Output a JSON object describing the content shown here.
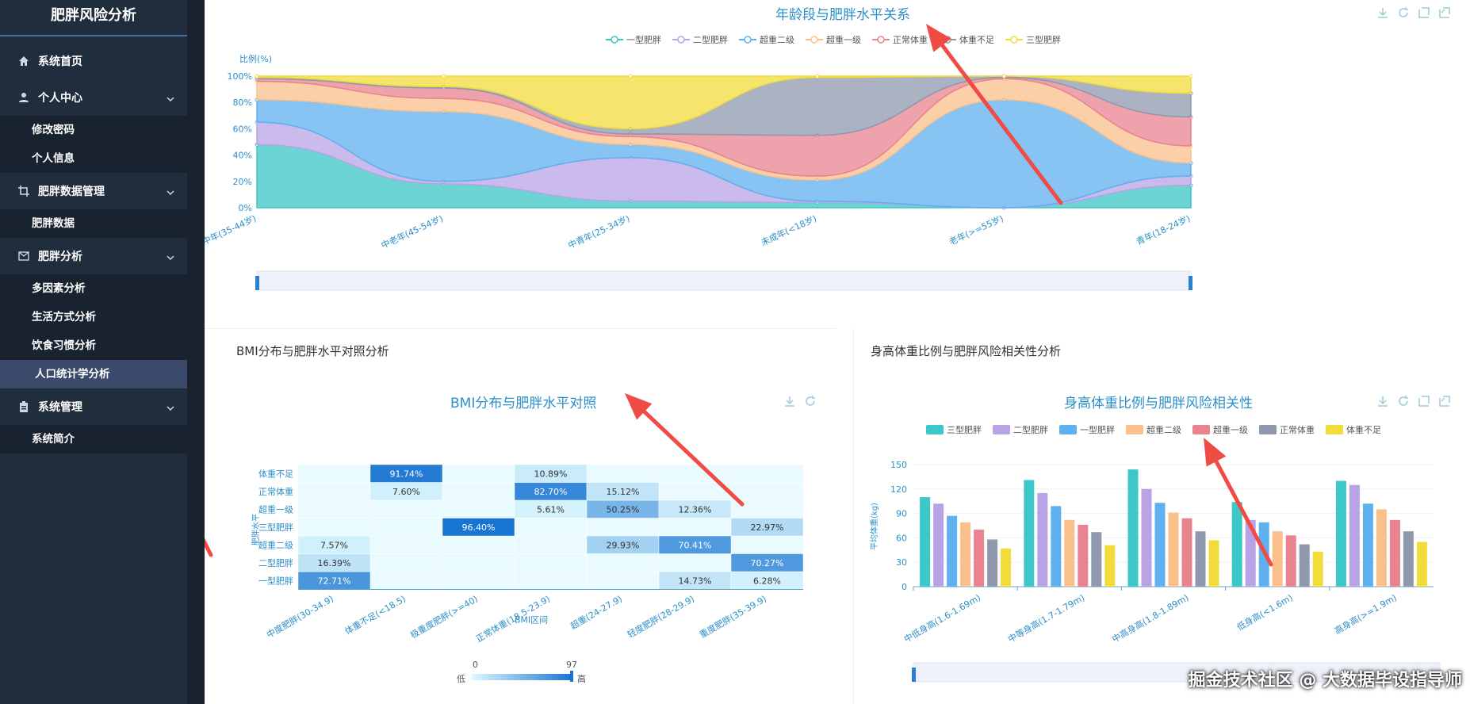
{
  "sidebar": {
    "brand": "肥胖风险分析",
    "home": "系统首页",
    "personal": "个人中心",
    "personal_items": [
      "修改密码",
      "个人信息"
    ],
    "data_mgmt": "肥胖数据管理",
    "data_items": [
      "肥胖数据"
    ],
    "analysis": "肥胖分析",
    "analysis_items": [
      "多因素分析",
      "生活方式分析",
      "饮食习惯分析",
      "人口统计学分析"
    ],
    "system": "系统管理",
    "system_items": [
      "系统简介"
    ]
  },
  "top_chart": {
    "title": "年龄段与肥胖水平关系",
    "ylabel": "比例(%)",
    "legend": [
      "一型肥胖",
      "二型肥胖",
      "超重二级",
      "超重一级",
      "正常体重",
      "体重不足",
      "三型肥胖"
    ],
    "legend_colors": [
      "#3cc6c6",
      "#b9a4e6",
      "#5fb0ef",
      "#f9c08c",
      "#e8838f",
      "#8f98ad",
      "#f1dc3b"
    ]
  },
  "bmi_panel": {
    "panel_title": "BMI分布与肥胖水平对照分析",
    "chart_title": "BMI分布与肥胖水平对照",
    "xlabel": "BMI区间",
    "ylabel": "肥胖水平",
    "visual_min": "0",
    "visual_max": "97",
    "visual_low": "低",
    "visual_high": "高"
  },
  "height_panel": {
    "panel_title": "身高体重比例与肥胖风险相关性分析",
    "chart_title": "身高体重比例与肥胖风险相关性",
    "ylabel": "平均体重(kg)",
    "legend": [
      "三型肥胖",
      "二型肥胖",
      "一型肥胖",
      "超重二级",
      "超重一级",
      "正常体重",
      "体重不足"
    ],
    "legend_colors": [
      "#3cc8c8",
      "#b8a3e6",
      "#5fb0ef",
      "#f9c08c",
      "#e8838f",
      "#8f98ad",
      "#f1dc3b"
    ]
  },
  "watermark": "掘金技术社区 @ 大数据毕设指导师",
  "chart_data": [
    {
      "type": "area",
      "title": "年龄段与肥胖水平关系",
      "ylabel": "比例(%)",
      "ylim": [
        0,
        100
      ],
      "yticks": [
        "0%",
        "20%",
        "40%",
        "60%",
        "80%",
        "100%"
      ],
      "categories": [
        "中年(35-44岁)",
        "中老年(45-54岁)",
        "中青年(25-34岁)",
        "未成年(<18岁)",
        "老年(>=55岁)",
        "青年(18-24岁)"
      ],
      "series": [
        {
          "name": "一型肥胖",
          "values": [
            48,
            18,
            5,
            4,
            0,
            17
          ]
        },
        {
          "name": "二型肥胖",
          "values": [
            17,
            2,
            33,
            1,
            0,
            7
          ]
        },
        {
          "name": "超重二级",
          "values": [
            17,
            53,
            10,
            16,
            82,
            10
          ]
        },
        {
          "name": "超重一级",
          "values": [
            14,
            10,
            6,
            3,
            16,
            13
          ]
        },
        {
          "name": "正常体重",
          "values": [
            2,
            8,
            2,
            31,
            1,
            22
          ]
        },
        {
          "name": "体重不足",
          "values": [
            1,
            1,
            4,
            44,
            1,
            18
          ]
        },
        {
          "name": "三型肥胖",
          "values": [
            1,
            8,
            40,
            1,
            0,
            13
          ]
        }
      ],
      "legend": "top-center"
    },
    {
      "type": "heatmap",
      "title": "BMI分布与肥胖水平对照",
      "xlabel": "BMI区间",
      "ylabel": "肥胖水平",
      "x": [
        "中度肥胖(30-34.9)",
        "体重不足(<18.5)",
        "极重度肥胖(>=40)",
        "正常体重(18.5-23.9)",
        "超重(24-27.9)",
        "轻度肥胖(28-29.9)",
        "重度肥胖(35-39.9)"
      ],
      "y": [
        "一型肥胖",
        "二型肥胖",
        "超重二级",
        "三型肥胖",
        "超重一级",
        "正常体重",
        "体重不足"
      ],
      "cells": [
        {
          "x": 0,
          "y": 0,
          "value": 72.71,
          "label": "72.71%"
        },
        {
          "x": 0,
          "y": 1,
          "value": 16.39,
          "label": "16.39%"
        },
        {
          "x": 0,
          "y": 2,
          "value": 7.57,
          "label": "7.57%"
        },
        {
          "x": 1,
          "y": 5,
          "value": 7.6,
          "label": "7.60%"
        },
        {
          "x": 1,
          "y": 6,
          "value": 91.74,
          "label": "91.74%"
        },
        {
          "x": 2,
          "y": 3,
          "value": 96.4,
          "label": "96.40%"
        },
        {
          "x": 3,
          "y": 4,
          "value": 5.61,
          "label": "5.61%"
        },
        {
          "x": 3,
          "y": 5,
          "value": 82.7,
          "label": "82.70%"
        },
        {
          "x": 3,
          "y": 6,
          "value": 10.89,
          "label": "10.89%"
        },
        {
          "x": 4,
          "y": 2,
          "value": 29.93,
          "label": "29.93%"
        },
        {
          "x": 4,
          "y": 4,
          "value": 50.25,
          "label": "50.25%"
        },
        {
          "x": 4,
          "y": 5,
          "value": 15.12,
          "label": "15.12%"
        },
        {
          "x": 5,
          "y": 0,
          "value": 14.73,
          "label": "14.73%"
        },
        {
          "x": 5,
          "y": 2,
          "value": 70.41,
          "label": "70.41%"
        },
        {
          "x": 5,
          "y": 4,
          "value": 12.36,
          "label": "12.36%"
        },
        {
          "x": 6,
          "y": 0,
          "value": 6.28,
          "label": "6.28%"
        },
        {
          "x": 6,
          "y": 1,
          "value": 70.27,
          "label": "70.27%"
        },
        {
          "x": 6,
          "y": 3,
          "value": 22.97,
          "label": "22.97%"
        }
      ],
      "visual_range": [
        0,
        97
      ]
    },
    {
      "type": "bar",
      "title": "身高体重比例与肥胖风险相关性",
      "ylabel": "平均体重(kg)",
      "ylim": [
        0,
        150
      ],
      "yticks": [
        "0",
        "30",
        "60",
        "90",
        "120",
        "150"
      ],
      "categories": [
        "中低身高(1.6-1.69m)",
        "中等身高(1.7-1.79m)",
        "中高身高(1.8-1.89m)",
        "低身高(<1.6m)",
        "高身高(>=1.9m)"
      ],
      "series": [
        {
          "name": "三型肥胖",
          "values": [
            110,
            131,
            144,
            104,
            130
          ]
        },
        {
          "name": "二型肥胖",
          "values": [
            102,
            115,
            120,
            82,
            125
          ]
        },
        {
          "name": "一型肥胖",
          "values": [
            87,
            99,
            103,
            79,
            102
          ]
        },
        {
          "name": "超重二级",
          "values": [
            79,
            82,
            91,
            68,
            95
          ]
        },
        {
          "name": "超重一级",
          "values": [
            70,
            76,
            84,
            63,
            82
          ]
        },
        {
          "name": "正常体重",
          "values": [
            58,
            67,
            68,
            52,
            68
          ]
        },
        {
          "name": "体重不足",
          "values": [
            47,
            51,
            57,
            43,
            55
          ]
        }
      ],
      "legend": "top-center"
    }
  ]
}
